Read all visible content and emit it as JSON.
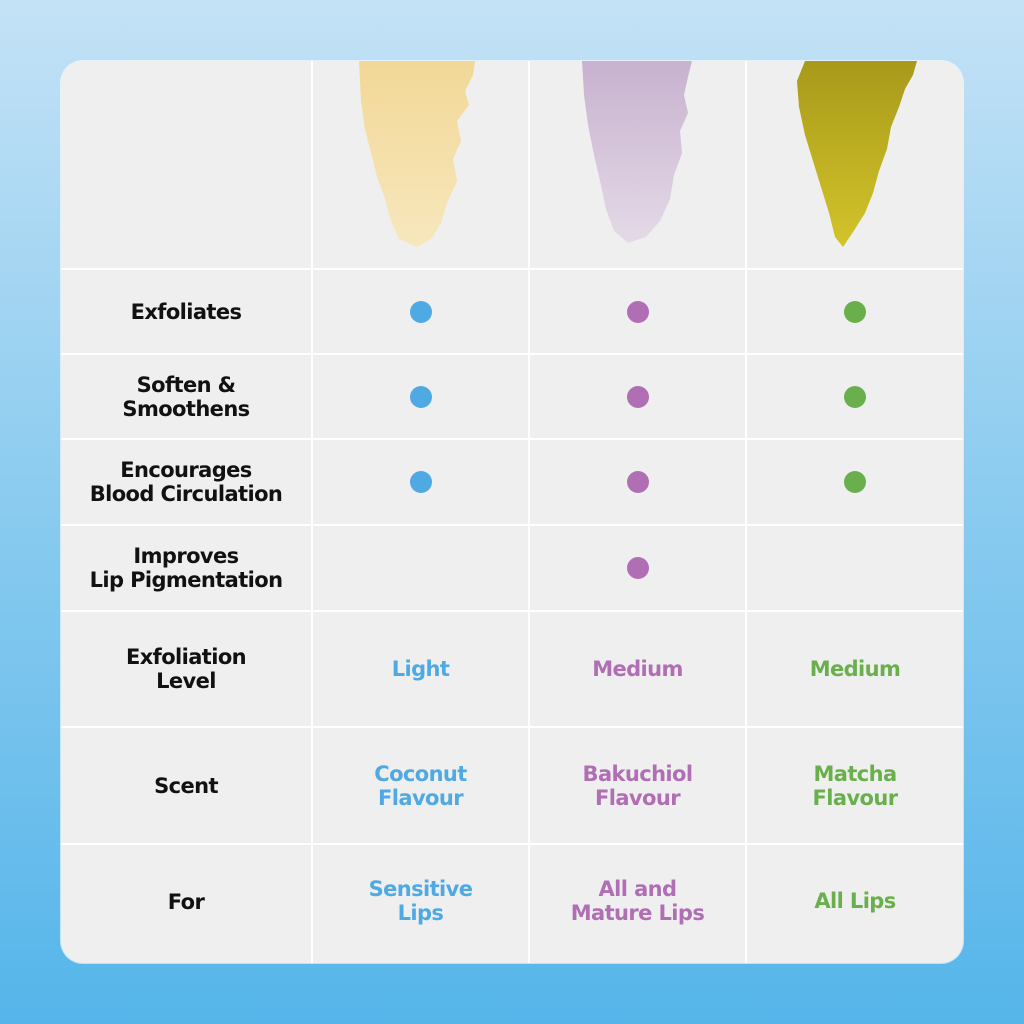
{
  "colors": {
    "coconut": "#4fa9e3",
    "bakuchiol": "#b06fb4",
    "matcha": "#69b04d",
    "label": "#111111"
  },
  "products": [
    {
      "key": "coconut",
      "swatch_color": "#f4dca0",
      "swatch_name": "coconut-scrub-swatch"
    },
    {
      "key": "bakuchiol",
      "swatch_color": "#d8c8dc",
      "swatch_name": "bakuchiol-scrub-swatch"
    },
    {
      "key": "matcha",
      "swatch_color": "#b3a81d",
      "swatch_name": "matcha-scrub-swatch"
    }
  ],
  "rows": [
    {
      "label": "Exfoliates",
      "type": "dots",
      "values": [
        true,
        true,
        true
      ]
    },
    {
      "label": "Soften &\nSmoothens",
      "type": "dots",
      "values": [
        true,
        true,
        true
      ]
    },
    {
      "label": "Encourages\nBlood Circulation",
      "type": "dots",
      "values": [
        true,
        true,
        true
      ]
    },
    {
      "label": "Improves\nLip Pigmentation",
      "type": "dots",
      "values": [
        false,
        true,
        false
      ]
    },
    {
      "label": "Exfoliation\nLevel",
      "type": "text",
      "values": [
        "Light",
        "Medium",
        "Medium"
      ]
    },
    {
      "label": "Scent",
      "type": "text",
      "values": [
        "Coconut\nFlavour",
        "Bakuchiol\nFlavour",
        "Matcha\nFlavour"
      ]
    },
    {
      "label": "For",
      "type": "text",
      "values": [
        "Sensitive\nLips",
        "All and\nMature Lips",
        "All Lips"
      ]
    }
  ]
}
